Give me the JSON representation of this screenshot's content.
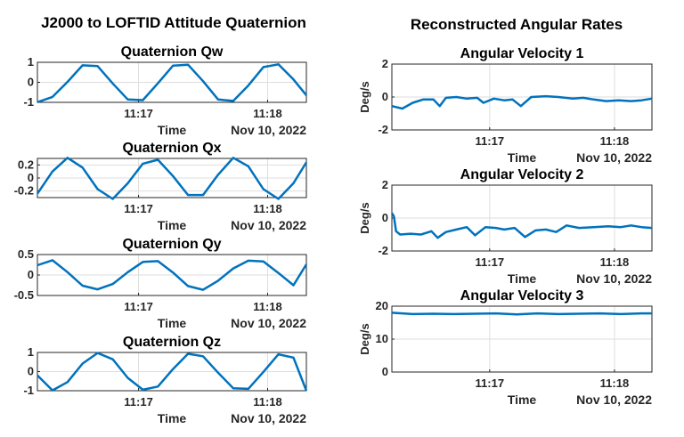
{
  "column_titles": {
    "left": "J2000 to LOFTID Attitude Quaternion",
    "right": "Reconstructed Angular Rates"
  },
  "colors": {
    "series": "#0072BD",
    "axis": "#262626",
    "grid": "#dedede"
  },
  "chart_data": [
    {
      "type": "line",
      "title": "Quaternion Qw",
      "xlabel": "Time",
      "xsublabel": "Nov 10, 2022",
      "ylabel": "",
      "xlim": [
        "11:16:13",
        "11:18:18"
      ],
      "ylim": [
        -1,
        1
      ],
      "yticks": [
        -1,
        0,
        1
      ],
      "ytick_labels": [
        "-1",
        "0",
        "1"
      ],
      "xticks": [
        "11:17",
        "11:18"
      ],
      "grid": true,
      "series": [
        {
          "x": [
            "11:16:13",
            "11:16:20",
            "11:16:27",
            "11:16:34",
            "11:16:41",
            "11:16:48",
            "11:16:55",
            "11:17:02",
            "11:17:09",
            "11:17:16",
            "11:17:23",
            "11:17:30",
            "11:17:37",
            "11:17:44",
            "11:17:51",
            "11:17:58",
            "11:18:05",
            "11:18:12",
            "11:18:18"
          ],
          "values": [
            -0.99,
            -0.73,
            0.02,
            0.85,
            0.81,
            -0.06,
            -0.86,
            -0.89,
            -0.05,
            0.83,
            0.88,
            0.06,
            -0.86,
            -0.93,
            -0.16,
            0.76,
            0.9,
            0.14,
            -0.65
          ]
        }
      ]
    },
    {
      "type": "line",
      "title": "Quaternion Qx",
      "xlabel": "Time",
      "xsublabel": "Nov 10, 2022",
      "ylabel": "",
      "xlim": [
        "11:16:13",
        "11:18:18"
      ],
      "ylim": [
        -0.3,
        0.3
      ],
      "yticks": [
        -0.2,
        0,
        0.2
      ],
      "ytick_labels": [
        "-0.2",
        "0",
        "0.2"
      ],
      "xticks": [
        "11:17",
        "11:18"
      ],
      "grid": true,
      "series": [
        {
          "x": [
            "11:16:13",
            "11:16:20",
            "11:16:27",
            "11:16:34",
            "11:16:41",
            "11:16:48",
            "11:16:55",
            "11:17:02",
            "11:17:09",
            "11:17:16",
            "11:17:23",
            "11:17:30",
            "11:17:37",
            "11:17:44",
            "11:17:51",
            "11:17:58",
            "11:18:05",
            "11:18:12",
            "11:18:18"
          ],
          "values": [
            -0.24,
            0.1,
            0.31,
            0.16,
            -0.17,
            -0.32,
            -0.08,
            0.22,
            0.28,
            0.03,
            -0.26,
            -0.26,
            0.05,
            0.31,
            0.18,
            -0.17,
            -0.32,
            -0.08,
            0.24
          ]
        }
      ]
    },
    {
      "type": "line",
      "title": "Quaternion Qy",
      "xlabel": "Time",
      "xsublabel": "Nov 10, 2022",
      "ylabel": "",
      "xlim": [
        "11:16:13",
        "11:18:18"
      ],
      "ylim": [
        -0.5,
        0.5
      ],
      "yticks": [
        -0.5,
        0,
        0.5
      ],
      "ytick_labels": [
        "-0.5",
        "0",
        "0.5"
      ],
      "xticks": [
        "11:17",
        "11:18"
      ],
      "grid": true,
      "series": [
        {
          "x": [
            "11:16:13",
            "11:16:20",
            "11:16:27",
            "11:16:34",
            "11:16:41",
            "11:16:48",
            "11:16:55",
            "11:17:02",
            "11:17:09",
            "11:17:16",
            "11:17:23",
            "11:17:30",
            "11:17:37",
            "11:17:44",
            "11:17:51",
            "11:17:58",
            "11:18:05",
            "11:18:12",
            "11:18:18"
          ],
          "values": [
            0.24,
            0.36,
            0.07,
            -0.26,
            -0.35,
            -0.22,
            0.07,
            0.32,
            0.34,
            0.06,
            -0.27,
            -0.36,
            -0.14,
            0.16,
            0.35,
            0.33,
            0.05,
            -0.25,
            0.26
          ]
        }
      ]
    },
    {
      "type": "line",
      "title": "Quaternion Qz",
      "xlabel": "Time",
      "xsublabel": "Nov 10, 2022",
      "ylabel": "",
      "xlim": [
        "11:16:13",
        "11:18:18"
      ],
      "ylim": [
        -1,
        1
      ],
      "yticks": [
        -1,
        0,
        1
      ],
      "ytick_labels": [
        "-1",
        "0",
        "1"
      ],
      "xticks": [
        "11:17",
        "11:18"
      ],
      "grid": true,
      "series": [
        {
          "x": [
            "11:16:13",
            "11:16:20",
            "11:16:27",
            "11:16:34",
            "11:16:41",
            "11:16:48",
            "11:16:55",
            "11:17:02",
            "11:17:09",
            "11:17:16",
            "11:17:23",
            "11:17:30",
            "11:17:37",
            "11:17:44",
            "11:17:51",
            "11:17:58",
            "11:18:05",
            "11:18:12",
            "11:18:18"
          ],
          "values": [
            -0.2,
            -0.98,
            -0.55,
            0.42,
            0.97,
            0.64,
            -0.33,
            -0.95,
            -0.78,
            0.13,
            0.93,
            0.8,
            -0.06,
            -0.87,
            -0.9,
            -0.02,
            0.9,
            0.73,
            -1.0
          ]
        }
      ]
    },
    {
      "type": "line",
      "title": "Angular Velocity 1",
      "xlabel": "Time",
      "xsublabel": "Nov 10, 2022",
      "ylabel": "Deg/s",
      "xlim": [
        "11:16:13",
        "11:18:18"
      ],
      "ylim": [
        -2,
        2
      ],
      "yticks": [
        -2,
        0,
        2
      ],
      "ytick_labels": [
        "-2",
        "0",
        "2"
      ],
      "xticks": [
        "11:17",
        "11:18"
      ],
      "grid": true,
      "series": [
        {
          "x": [
            "11:16:13",
            "11:16:18",
            "11:16:23",
            "11:16:28",
            "11:16:33",
            "11:16:36",
            "11:16:39",
            "11:16:44",
            "11:16:49",
            "11:16:54",
            "11:16:57",
            "11:17:02",
            "11:17:07",
            "11:17:11",
            "11:17:15",
            "11:17:20",
            "11:17:27",
            "11:17:33",
            "11:17:40",
            "11:17:45",
            "11:17:50",
            "11:17:56",
            "11:18:02",
            "11:18:08",
            "11:18:13",
            "11:18:18"
          ],
          "values": [
            -0.55,
            -0.7,
            -0.35,
            -0.15,
            -0.15,
            -0.55,
            -0.05,
            0.0,
            -0.1,
            -0.05,
            -0.35,
            -0.1,
            -0.2,
            -0.15,
            -0.55,
            0.0,
            0.05,
            0.0,
            -0.1,
            -0.05,
            -0.15,
            -0.25,
            -0.2,
            -0.25,
            -0.2,
            -0.1
          ]
        }
      ]
    },
    {
      "type": "line",
      "title": "Angular Velocity 2",
      "xlabel": "Time",
      "xsublabel": "Nov 10, 2022",
      "ylabel": "Deg/s",
      "xlim": [
        "11:16:13",
        "11:18:18"
      ],
      "ylim": [
        -2,
        2
      ],
      "yticks": [
        -2,
        0,
        2
      ],
      "ytick_labels": [
        "-2",
        "0",
        "2"
      ],
      "xticks": [
        "11:17",
        "11:18"
      ],
      "grid": true,
      "series": [
        {
          "x": [
            "11:16:13",
            "11:16:14",
            "11:16:15",
            "11:16:17",
            "11:16:22",
            "11:16:27",
            "11:16:32",
            "11:16:35",
            "11:16:39",
            "11:16:44",
            "11:16:49",
            "11:16:53",
            "11:16:58",
            "11:17:03",
            "11:17:07",
            "11:17:12",
            "11:17:17",
            "11:17:22",
            "11:17:27",
            "11:17:32",
            "11:17:37",
            "11:17:43",
            "11:17:50",
            "11:17:57",
            "11:18:03",
            "11:18:08",
            "11:18:13",
            "11:18:18"
          ],
          "values": [
            0.3,
            0.1,
            -0.8,
            -1.0,
            -0.95,
            -1.0,
            -0.8,
            -1.2,
            -0.85,
            -0.7,
            -0.55,
            -1.05,
            -0.55,
            -0.6,
            -0.7,
            -0.6,
            -1.15,
            -0.75,
            -0.7,
            -0.85,
            -0.45,
            -0.6,
            -0.55,
            -0.5,
            -0.55,
            -0.45,
            -0.55,
            -0.6
          ]
        }
      ]
    },
    {
      "type": "line",
      "title": "Angular Velocity 3",
      "xlabel": "Time",
      "xsublabel": "Nov 10, 2022",
      "ylabel": "Deg/s",
      "xlim": [
        "11:16:13",
        "11:18:18"
      ],
      "ylim": [
        0,
        20
      ],
      "yticks": [
        0,
        10,
        20
      ],
      "ytick_labels": [
        "0",
        "10",
        "20"
      ],
      "xticks": [
        "11:17",
        "11:18"
      ],
      "grid": true,
      "series": [
        {
          "x": [
            "11:16:13",
            "11:16:23",
            "11:16:33",
            "11:16:43",
            "11:16:53",
            "11:17:03",
            "11:17:13",
            "11:17:23",
            "11:17:33",
            "11:17:43",
            "11:17:53",
            "11:18:03",
            "11:18:13",
            "11:18:18"
          ],
          "values": [
            18.0,
            17.6,
            17.7,
            17.6,
            17.7,
            17.8,
            17.5,
            17.8,
            17.6,
            17.7,
            17.8,
            17.6,
            17.8,
            17.8
          ]
        }
      ]
    }
  ]
}
